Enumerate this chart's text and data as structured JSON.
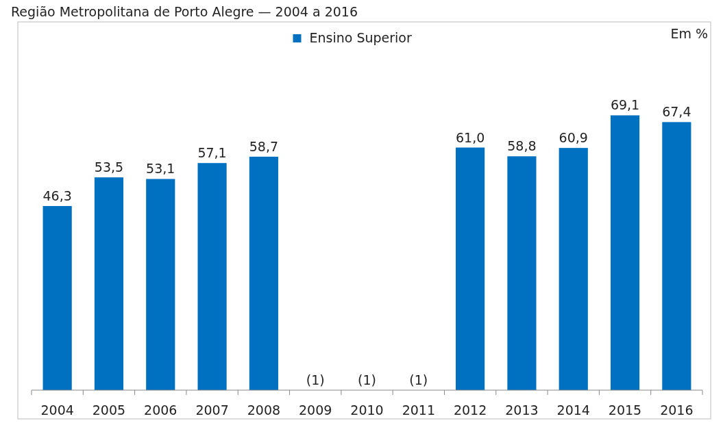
{
  "chart_data": {
    "type": "bar",
    "title": "Região Metropolitana de Porto Alegre — 2004 a 2016",
    "categories": [
      "2004",
      "2005",
      "2006",
      "2007",
      "2008",
      "2009",
      "2010",
      "2011",
      "2012",
      "2013",
      "2014",
      "2015",
      "2016"
    ],
    "series": [
      {
        "name": "Ensino Superior",
        "color": "#0070c0",
        "values": [
          46.3,
          53.5,
          53.1,
          57.1,
          58.7,
          null,
          null,
          null,
          61.0,
          58.8,
          60.9,
          69.1,
          67.4
        ],
        "value_labels": [
          "46,3",
          "53,5",
          "53,1",
          "57,1",
          "58,7",
          "(1)",
          "(1)",
          "(1)",
          "61,0",
          "58,8",
          "60,9",
          "69,1",
          "67,4"
        ]
      }
    ],
    "annotations": [
      "Em %"
    ],
    "legend": "top",
    "grid": false
  }
}
